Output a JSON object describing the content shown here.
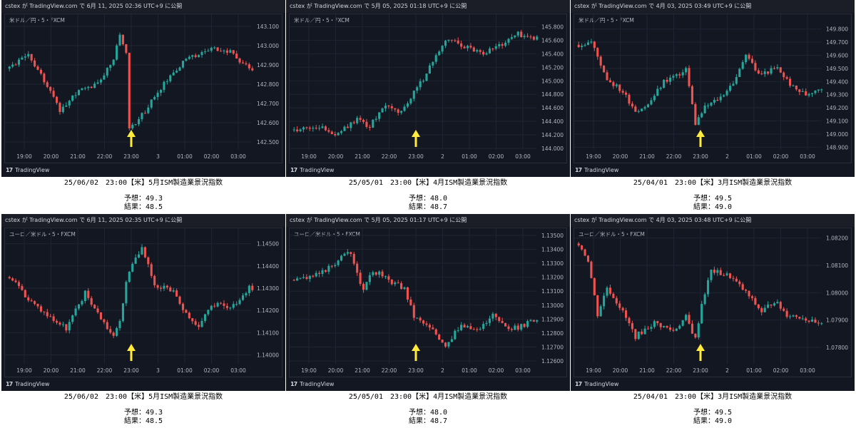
{
  "layout": {
    "rows": 2,
    "cols": 3
  },
  "colors": {
    "up": "#26a69a",
    "down": "#ef5350",
    "arrow": "#ffeb3b",
    "background": "#131722",
    "grid": "#1f2433",
    "text": "#b2b5be"
  },
  "footer_brand": "TradingView",
  "panels": [
    {
      "header": "cstex が TradingView.com で 6月 11, 2025 02:36 UTC+9 に公開",
      "symbol": "米ドル／円・5・FXCM",
      "caption_title": "25/06/02　23:00【米】5月ISM製造業景況指数",
      "forecast": "予想：49.3",
      "result": "結果：48.5",
      "chart_data": {
        "type": "candlestick",
        "y_ticks": [
          "143.100",
          "143.000",
          "142.900",
          "142.800",
          "142.700",
          "142.600",
          "142.500"
        ],
        "ylim": [
          142.46,
          143.14
        ],
        "x_ticks": [
          "19:00",
          "20:00",
          "21:00",
          "22:00",
          "23:00",
          "3",
          "01:00",
          "02:00",
          "03:00"
        ],
        "arrow_at": "23:00",
        "close_path": [
          [
            0,
            142.88
          ],
          [
            6,
            142.95
          ],
          [
            10,
            142.85
          ],
          [
            16,
            142.66
          ],
          [
            20,
            142.74
          ],
          [
            28,
            142.81
          ],
          [
            33,
            142.92
          ],
          [
            35,
            143.06
          ],
          [
            37,
            142.95
          ],
          [
            38,
            142.56
          ],
          [
            42,
            142.64
          ],
          [
            48,
            142.78
          ],
          [
            56,
            142.93
          ],
          [
            64,
            142.98
          ],
          [
            70,
            142.97
          ],
          [
            76,
            142.88
          ]
        ]
      }
    },
    {
      "header": "cstex が TradingView.com で 5月 05, 2025 01:18 UTC+9 に公開",
      "symbol": "米ドル／円・5・FXCM",
      "caption_title": "25/05/01　23:00【米】4月ISM製造業景況指数",
      "forecast": "予想：48.0",
      "result": "結果：48.7",
      "chart_data": {
        "type": "candlestick",
        "y_ticks": [
          "145.800",
          "145.600",
          "145.400",
          "145.200",
          "145.000",
          "144.800",
          "144.600",
          "144.400",
          "144.200",
          "144.000"
        ],
        "ylim": [
          143.98,
          145.92
        ],
        "x_ticks": [
          "19:00",
          "20:00",
          "21:00",
          "22:00",
          "23:00",
          "2",
          "01:00",
          "02:00",
          "03:00"
        ],
        "arrow_at": "23:00",
        "close_path": [
          [
            0,
            144.28
          ],
          [
            8,
            144.33
          ],
          [
            14,
            144.2
          ],
          [
            20,
            144.45
          ],
          [
            24,
            144.32
          ],
          [
            28,
            144.62
          ],
          [
            34,
            144.55
          ],
          [
            38,
            144.82
          ],
          [
            42,
            145.1
          ],
          [
            45,
            145.4
          ],
          [
            49,
            145.62
          ],
          [
            55,
            145.5
          ],
          [
            60,
            145.42
          ],
          [
            66,
            145.55
          ],
          [
            71,
            145.7
          ],
          [
            76,
            145.62
          ]
        ]
      }
    },
    {
      "header": "cstex が TradingView.com で 4月 03, 2025 03:49 UTC+9 に公開",
      "symbol": "米ドル／円・5・FXCM",
      "caption_title": "25/04/01　23:00【米】3月ISM製造業景況指数",
      "forecast": "予想：49.5",
      "result": "結果：49.0",
      "chart_data": {
        "type": "candlestick",
        "y_ticks": [
          "149.800",
          "149.700",
          "149.600",
          "149.500",
          "149.400",
          "149.300",
          "149.200",
          "149.100",
          "149.000",
          "148.900"
        ],
        "ylim": [
          148.88,
          149.88
        ],
        "x_ticks": [
          "19:00",
          "20:00",
          "21:00",
          "22:00",
          "23:00",
          "2",
          "01:00",
          "02:00",
          "03:00"
        ],
        "arrow_at": "23:00",
        "close_path": [
          [
            0,
            149.68
          ],
          [
            4,
            149.7
          ],
          [
            9,
            149.42
          ],
          [
            14,
            149.32
          ],
          [
            18,
            149.18
          ],
          [
            22,
            149.22
          ],
          [
            27,
            149.4
          ],
          [
            31,
            149.45
          ],
          [
            34,
            149.5
          ],
          [
            37,
            149.08
          ],
          [
            40,
            149.2
          ],
          [
            45,
            149.28
          ],
          [
            50,
            149.42
          ],
          [
            53,
            149.62
          ],
          [
            57,
            149.45
          ],
          [
            63,
            149.5
          ],
          [
            68,
            149.35
          ],
          [
            72,
            149.3
          ],
          [
            76,
            149.35
          ]
        ]
      }
    },
    {
      "header": "cstex が TradingView.com で 6月 11, 2025 02:35 UTC+9 に公開",
      "symbol": "ユーロ／米ドル・5・FXCM",
      "caption_title": "25/06/02　23:00【米】5月ISM製造業景況指数",
      "forecast": "予想：49.3",
      "result": "結果：48.5",
      "chart_data": {
        "type": "candlestick",
        "y_ticks": [
          "1.14500",
          "1.14400",
          "1.14300",
          "1.14200",
          "1.14100",
          "1.14000"
        ],
        "ylim": [
          1.1396,
          1.1455
        ],
        "x_ticks": [
          "19:00",
          "20:00",
          "21:00",
          "22:00",
          "23:00",
          "3",
          "01:00",
          "02:00",
          "03:00"
        ],
        "arrow_at": "23:00",
        "close_path": [
          [
            0,
            1.1435
          ],
          [
            6,
            1.1425
          ],
          [
            12,
            1.1418
          ],
          [
            18,
            1.1412
          ],
          [
            24,
            1.1428
          ],
          [
            28,
            1.1419
          ],
          [
            33,
            1.1408
          ],
          [
            35,
            1.1416
          ],
          [
            37,
            1.1432
          ],
          [
            39,
            1.1442
          ],
          [
            42,
            1.1448
          ],
          [
            46,
            1.1432
          ],
          [
            52,
            1.1428
          ],
          [
            56,
            1.1418
          ],
          [
            60,
            1.1412
          ],
          [
            64,
            1.1423
          ],
          [
            70,
            1.1421
          ],
          [
            76,
            1.143
          ]
        ]
      }
    },
    {
      "header": "cstex が TradingView.com で 5月 05, 2025 01:17 UTC+9 に公開",
      "symbol": "ユーロ／米ドル・5・FXCM",
      "caption_title": "25/05/01　23:00【米】4月ISM製造業景況指数",
      "forecast": "予想：48.0",
      "result": "結果：48.7",
      "chart_data": {
        "type": "candlestick",
        "y_ticks": [
          "1.13500",
          "1.13400",
          "1.13300",
          "1.13200",
          "1.13100",
          "1.13000",
          "1.12900",
          "1.12800",
          "1.12700",
          "1.12600"
        ],
        "ylim": [
          1.1258,
          1.1352
        ],
        "x_ticks": [
          "19:00",
          "20:00",
          "21:00",
          "22:00",
          "23:00",
          "2",
          "01:00",
          "02:00",
          "03:00"
        ],
        "arrow_at": "23:00",
        "close_path": [
          [
            0,
            1.1318
          ],
          [
            8,
            1.1322
          ],
          [
            14,
            1.1332
          ],
          [
            18,
            1.1338
          ],
          [
            22,
            1.131
          ],
          [
            25,
            1.1325
          ],
          [
            30,
            1.1318
          ],
          [
            35,
            1.1312
          ],
          [
            38,
            1.1292
          ],
          [
            44,
            1.1282
          ],
          [
            48,
            1.1272
          ],
          [
            53,
            1.1285
          ],
          [
            58,
            1.1282
          ],
          [
            63,
            1.1292
          ],
          [
            68,
            1.1282
          ],
          [
            72,
            1.1285
          ],
          [
            76,
            1.129
          ]
        ]
      }
    },
    {
      "header": "cstex が TradingView.com で 4月 03, 2025 03:48 UTC+9 に公開",
      "symbol": "ユーロ／米ドル・5・FXCM",
      "caption_title": "25/04/01　23:00【米】3月ISM製造業景況指数",
      "forecast": "予想：49.5",
      "result": "結果：49.0",
      "chart_data": {
        "type": "candlestick",
        "y_ticks": [
          "1.08200",
          "1.08100",
          "1.08000",
          "1.07900",
          "1.07800"
        ],
        "ylim": [
          1.0774,
          1.0822
        ],
        "x_ticks": [
          "19:00",
          "20:00",
          "21:00",
          "22:00",
          "23:00",
          "2",
          "01:00",
          "02:00",
          "03:00"
        ],
        "arrow_at": "23:00",
        "close_path": [
          [
            0,
            1.0818
          ],
          [
            3,
            1.0812
          ],
          [
            6,
            1.0792
          ],
          [
            9,
            1.0802
          ],
          [
            13,
            1.0795
          ],
          [
            18,
            1.0784
          ],
          [
            24,
            1.0789
          ],
          [
            30,
            1.0786
          ],
          [
            34,
            1.0791
          ],
          [
            37,
            1.0783
          ],
          [
            39,
            1.0796
          ],
          [
            42,
            1.0808
          ],
          [
            48,
            1.0806
          ],
          [
            53,
            1.08
          ],
          [
            58,
            1.0793
          ],
          [
            62,
            1.0797
          ],
          [
            66,
            1.0792
          ],
          [
            71,
            1.0791
          ],
          [
            76,
            1.0788
          ]
        ]
      }
    }
  ]
}
